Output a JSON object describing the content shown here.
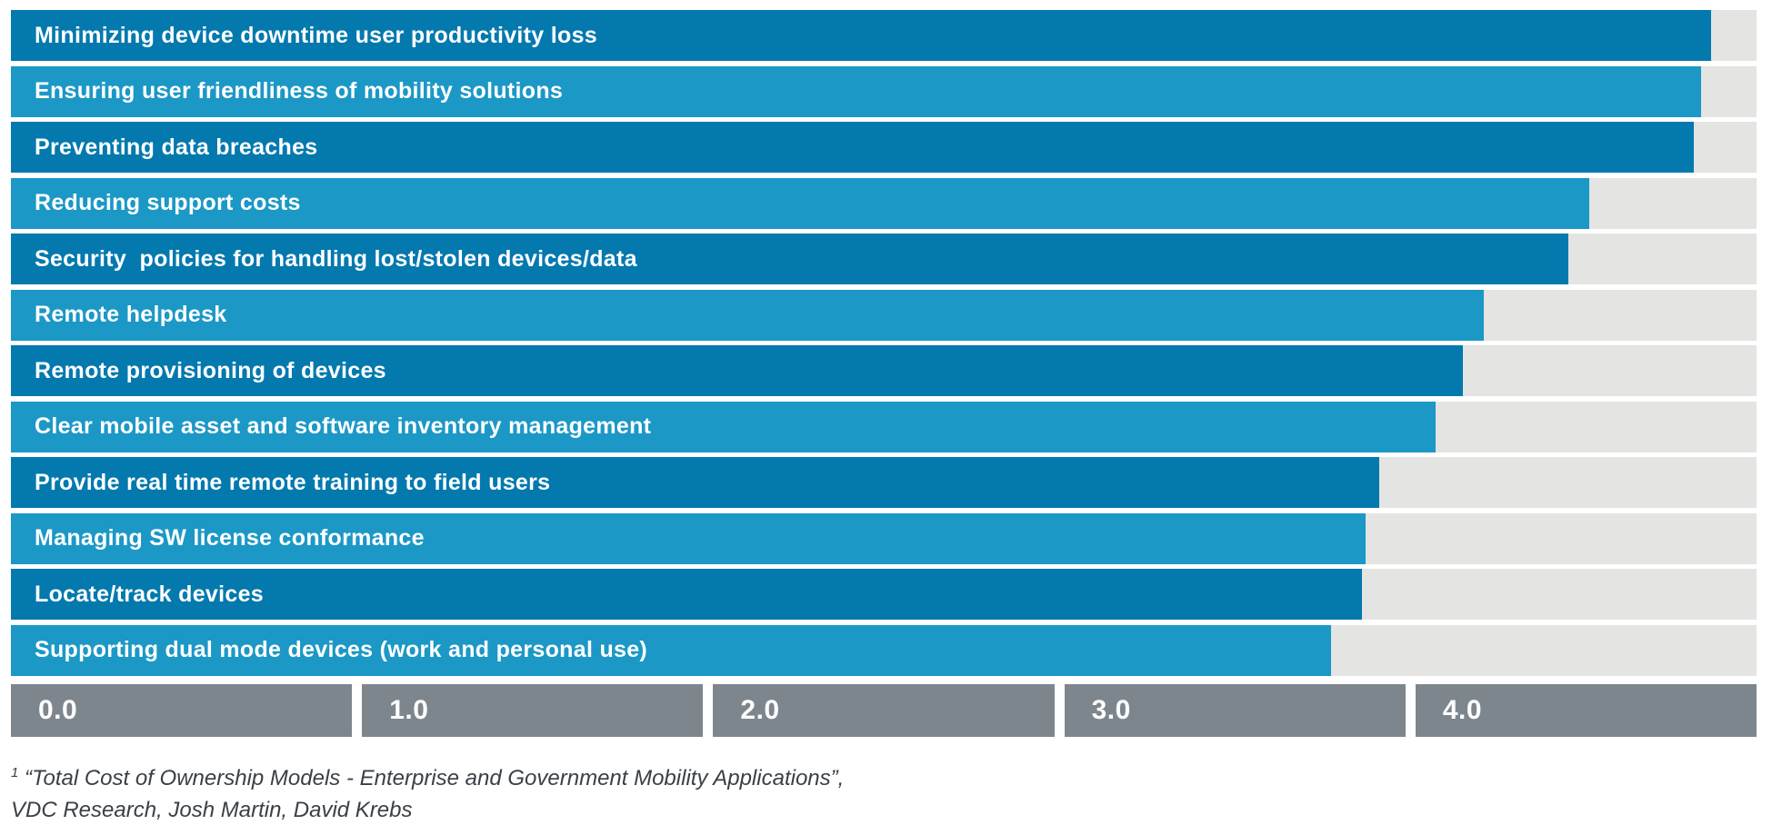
{
  "chart_data": {
    "type": "bar",
    "orientation": "horizontal",
    "title": "",
    "xlabel": "",
    "ylabel": "",
    "xlim": [
      0.0,
      5.0
    ],
    "x_ticks": [
      "0.0",
      "1.0",
      "2.0",
      "3.0",
      "4.0"
    ],
    "grid": false,
    "legend": false,
    "categories": [
      "Minimizing device downtime user productivity loss",
      "Ensuring user friendliness of mobility solutions",
      "Preventing data breaches",
      "Reducing support costs",
      "Security  policies for handling lost/stolen devices/data",
      "Remote helpdesk",
      "Remote provisioning of devices",
      "Clear mobile asset and software inventory management",
      "Provide real time remote training to field users",
      "Managing SW license conformance",
      "Locate/track devices",
      "Supporting dual mode devices (work and personal use)"
    ],
    "values": [
      4.87,
      4.84,
      4.82,
      4.52,
      4.46,
      4.22,
      4.16,
      4.08,
      3.92,
      3.88,
      3.87,
      3.78
    ],
    "layout_hints": {
      "bar_track_color_note": "each bar sits on a full-width light gray track",
      "alternating_bar_colors": true
    }
  },
  "colors": {
    "bar_dark_blue": "#0379ae",
    "bar_light_blue": "#1b98c6",
    "track_gray": "#e4e4e2",
    "axis_band_gray": "#7e868d",
    "label_text": "#ffffff",
    "footnote_text": "#3a4046",
    "background": "#ffffff"
  },
  "footnote": {
    "superscript": "1",
    "text": "“Total Cost of Ownership Models - Enterprise and Government Mobility Applications”, VDC Research, Josh Martin, David Krebs"
  }
}
